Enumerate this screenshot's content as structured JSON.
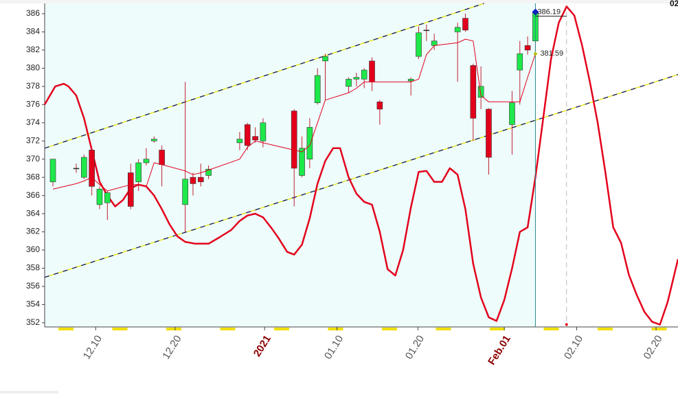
{
  "chart_data": {
    "type": "candlestick",
    "corner_label": "02",
    "xlim": [
      -1.06,
      80.32
    ],
    "ylim": [
      351.54,
      387.13
    ],
    "yticks": [
      352,
      354,
      356,
      358,
      360,
      362,
      364,
      366,
      368,
      370,
      372,
      374,
      376,
      378,
      380,
      382,
      384,
      386
    ],
    "xticks": [
      {
        "value": 5.5,
        "label": "12.10"
      },
      {
        "value": 15.7,
        "label": "12.20"
      },
      {
        "value": 27.2,
        "label": "2021",
        "color": "#8b0000"
      },
      {
        "value": 36.5,
        "label": "01.10"
      },
      {
        "value": 46.9,
        "label": "01.20"
      },
      {
        "value": 58,
        "label": "Feb.01",
        "color": "#8b0000"
      },
      {
        "value": 67.3,
        "label": "02.10"
      },
      {
        "value": 77.5,
        "label": "02.20"
      }
    ],
    "up_color": "#1ee84a",
    "down_color": "#e3001b",
    "x": [
      0,
      3,
      4,
      5,
      6,
      7,
      10,
      11,
      12,
      13,
      14,
      17,
      18,
      19,
      20,
      24,
      25,
      26,
      27,
      31,
      32,
      33,
      34,
      35,
      38,
      39,
      40,
      41,
      42,
      46,
      47,
      48,
      49,
      52,
      53,
      54,
      55,
      56,
      59,
      60,
      61,
      62
    ],
    "open": [
      367.5,
      369,
      368,
      371,
      365,
      365.2,
      368.5,
      367.5,
      369.6,
      372,
      371,
      365,
      368,
      368,
      368.2,
      371.8,
      373.8,
      372.5,
      372,
      375.3,
      368.2,
      370,
      376.2,
      380.8,
      378,
      378.8,
      378.8,
      380.8,
      376.3,
      378.6,
      381.3,
      384.2,
      382.5,
      384,
      385.5,
      380.3,
      376.8,
      375.5,
      373.8,
      379.8,
      382.5,
      383
    ],
    "high": [
      370,
      369.5,
      370.5,
      371.2,
      367,
      366.5,
      369.5,
      370,
      371.2,
      372.5,
      371.5,
      378.5,
      368.5,
      369.5,
      369.3,
      373,
      374,
      373.5,
      374.5,
      375.5,
      372.5,
      374.5,
      380,
      381.6,
      379,
      379.5,
      380,
      381.2,
      376.5,
      379,
      384.6,
      384.8,
      383.8,
      385,
      386,
      380.5,
      380.2,
      375.6,
      377.5,
      383,
      383.5,
      386.5
    ],
    "low": [
      367,
      368.5,
      367.8,
      366,
      364.5,
      363.3,
      364.5,
      366.5,
      369.3,
      371.8,
      367,
      362,
      366,
      367,
      367.8,
      371,
      371,
      371.8,
      371.3,
      364.8,
      368,
      369,
      376,
      376.5,
      377.3,
      378,
      377.8,
      377.5,
      373.8,
      377,
      381,
      383,
      382,
      378.5,
      384,
      372,
      375.5,
      368.3,
      370.5,
      376,
      381.5,
      381.5
    ],
    "close": [
      370,
      369,
      370.2,
      367,
      366.7,
      366.3,
      364.8,
      369.6,
      370,
      372.2,
      369.4,
      367.8,
      367.3,
      367.5,
      368.9,
      372.2,
      371.5,
      372.1,
      374,
      369,
      371.2,
      373.5,
      379.2,
      381.3,
      378.8,
      379,
      379.8,
      378.5,
      375.5,
      378.8,
      383.9,
      384.2,
      383,
      384.5,
      384.2,
      374.5,
      378,
      370.2,
      376.2,
      381.6,
      382,
      386.19
    ],
    "series": [
      {
        "color": "#e3001b",
        "width": 1,
        "x": [
          0,
          3,
          4,
          5,
          6,
          7,
          10,
          11,
          12,
          13,
          14,
          17,
          18,
          19,
          20,
          24,
          25,
          26,
          27,
          31,
          32,
          33,
          34,
          35,
          38,
          39,
          40,
          41,
          42,
          46,
          47,
          48,
          49,
          52,
          53,
          54,
          55,
          56,
          59,
          60,
          61,
          62
        ],
        "values": [
          366.7,
          367.3,
          367.6,
          368,
          367.2,
          366.5,
          367.2,
          367.2,
          367,
          369.6,
          369.4,
          368.7,
          368.3,
          368.5,
          368.8,
          370,
          371.3,
          372,
          371.8,
          371,
          370.8,
          371.5,
          374,
          376.5,
          377.3,
          377.8,
          378.5,
          378.5,
          378.5,
          378.5,
          378.8,
          381.5,
          382.5,
          382.8,
          383.2,
          383,
          377,
          376.3,
          376.3,
          376.3,
          379,
          381.59
        ]
      },
      {
        "color": "#e3001b",
        "width": 2.5,
        "x": [
          -1.06,
          0.3,
          1.4,
          2,
          3,
          4,
          5,
          6,
          7,
          8,
          9,
          10,
          11,
          12,
          13,
          14,
          15,
          16,
          17,
          18.3,
          20,
          21.4,
          22.9,
          24,
          25,
          26,
          27,
          28.1,
          29,
          30.1,
          31,
          32,
          33,
          34,
          35,
          36,
          36.9,
          38,
          39,
          40,
          41,
          42,
          43,
          44,
          45,
          46,
          47,
          48,
          49,
          50,
          51,
          52,
          53,
          54,
          55,
          56,
          57,
          58,
          59,
          60,
          61,
          62,
          63,
          64,
          65,
          66,
          67,
          68,
          69,
          70,
          71,
          72,
          73,
          74,
          75,
          76,
          77,
          78,
          79,
          80.32
        ],
        "values": [
          376,
          378,
          378.3,
          378,
          377,
          374.5,
          371,
          367.5,
          366,
          364.8,
          365.5,
          366.8,
          367.2,
          367,
          366,
          364.5,
          362.8,
          361.5,
          360.9,
          360.7,
          360.7,
          361.4,
          362.2,
          363.2,
          363.8,
          364,
          363.6,
          362.4,
          361.3,
          359.8,
          359.5,
          360.6,
          363.5,
          367.3,
          369.8,
          371.2,
          371.2,
          368,
          366.2,
          365.3,
          365,
          362,
          357.9,
          357.2,
          360,
          364.7,
          368.6,
          368.7,
          367.5,
          367.5,
          369,
          368.3,
          364.5,
          358.5,
          354.8,
          352.6,
          352.2,
          354.5,
          358,
          362,
          362.5,
          368,
          374.5,
          381,
          385,
          386.8,
          385.8,
          382.5,
          378.5,
          374,
          368.5,
          362.5,
          360.8,
          357.3,
          355.1,
          353.2,
          352.1,
          351.8,
          354.3,
          359
        ]
      }
    ],
    "trendlines": [
      {
        "x": [
          -1.06,
          55.4
        ],
        "values": [
          371.2,
          387.13
        ]
      },
      {
        "x": [
          -1.06,
          80.32
        ],
        "values": [
          357,
          379.3
        ]
      }
    ],
    "annotations": [
      {
        "x": 62,
        "value": 386.19,
        "color": "#1020c0"
      },
      {
        "x": 62,
        "value": 381.59,
        "color": "#b8c000"
      }
    ],
    "markers": {
      "current_x": 62,
      "projection_x": 66,
      "projection_value": 351.8
    }
  }
}
